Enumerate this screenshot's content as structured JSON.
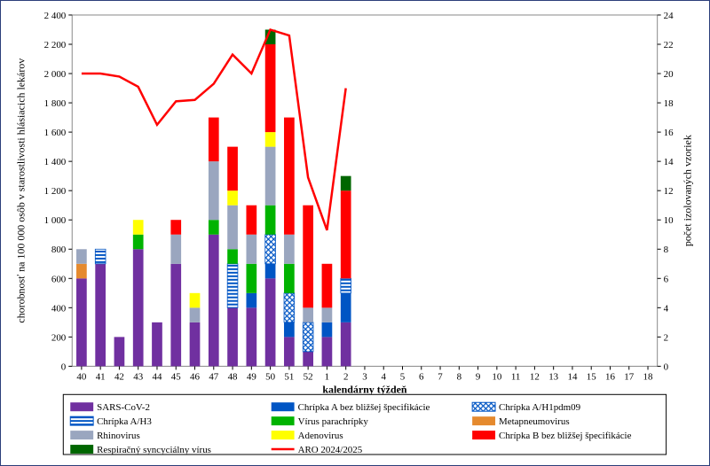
{
  "chart": {
    "type": "stacked-bar + line (dual y-axis)",
    "background_color": "#ffffff",
    "frame_border_color": "#2c3e7a",
    "plot_border_color": "#888888",
    "xlabel": "kalendárny týždeň",
    "ylabel": "chorobnosť na 100 000 osôb v starostlivosti hlásiacich lekárov",
    "y2label": "počet izolovaných vzoriek",
    "label_fontsize": 12,
    "tick_fontsize": 11,
    "x_categories": [
      "40",
      "41",
      "42",
      "43",
      "44",
      "45",
      "46",
      "47",
      "48",
      "49",
      "50",
      "51",
      "52",
      "1",
      "2",
      "3",
      "4",
      "5",
      "6",
      "7",
      "8",
      "9",
      "10",
      "11",
      "12",
      "13",
      "14",
      "15",
      "16",
      "17",
      "18"
    ],
    "ylim": [
      0,
      2400
    ],
    "ytick_step": 200,
    "y_sep1000": " ",
    "y2lim": [
      0,
      24
    ],
    "y2tick_step": 2,
    "bar_width": 0.55,
    "series": {
      "sars_cov2": {
        "label": "SARS-CoV-2",
        "color": "#7030a0",
        "pattern": "solid"
      },
      "flu_a_unspec": {
        "label": "Chrípka A bez bližšej špecifikácie",
        "color": "#0055c4",
        "pattern": "solid"
      },
      "flu_a_h1pdm09": {
        "label": "Chrípka A/H1pdm09",
        "color": "#0055c4",
        "pattern": "cross"
      },
      "flu_a_h3": {
        "label": "Chrípka A/H3",
        "color": "#0055c4",
        "pattern": "hstripe"
      },
      "parainfluenza": {
        "label": "Vírus parachrípky",
        "color": "#00b300",
        "pattern": "solid"
      },
      "metapneumo": {
        "label": "Metapneumovirus",
        "color": "#e58a2e",
        "pattern": "solid"
      },
      "rhinovirus": {
        "label": "Rhinovirus",
        "color": "#9aa6bf",
        "pattern": "solid"
      },
      "adenovirus": {
        "label": "Adenovirus",
        "color": "#ffff00",
        "pattern": "solid"
      },
      "flu_b_unspec": {
        "label": "Chrípka B bez bližšej špecifikácie",
        "color": "#ff0000",
        "pattern": "solid"
      },
      "rsv": {
        "label": "Respiračný syncyciálny vírus",
        "color": "#006600",
        "pattern": "solid"
      },
      "line_aro": {
        "label": "ARO 2024/2025",
        "color": "#ff0000"
      }
    },
    "stack_order": [
      "sars_cov2",
      "flu_a_unspec",
      "flu_a_h1pdm09",
      "flu_a_h3",
      "parainfluenza",
      "metapneumo",
      "rhinovirus",
      "adenovirus",
      "flu_b_unspec",
      "rsv"
    ],
    "bars_y2": [
      {
        "x": "40",
        "sars_cov2": 6,
        "metapneumo": 1,
        "rhinovirus": 1
      },
      {
        "x": "41",
        "sars_cov2": 7,
        "flu_a_h3": 1
      },
      {
        "x": "42",
        "sars_cov2": 2
      },
      {
        "x": "43",
        "sars_cov2": 8,
        "parainfluenza": 1,
        "adenovirus": 1
      },
      {
        "x": "44",
        "sars_cov2": 3
      },
      {
        "x": "45",
        "sars_cov2": 7,
        "rhinovirus": 2,
        "flu_b_unspec": 1
      },
      {
        "x": "46",
        "sars_cov2": 3,
        "rhinovirus": 1,
        "adenovirus": 1
      },
      {
        "x": "47",
        "sars_cov2": 9,
        "parainfluenza": 1,
        "rhinovirus": 4,
        "flu_b_unspec": 3
      },
      {
        "x": "48",
        "sars_cov2": 4,
        "flu_a_h3": 3,
        "parainfluenza": 1,
        "rhinovirus": 3,
        "adenovirus": 1,
        "flu_b_unspec": 3
      },
      {
        "x": "49",
        "sars_cov2": 4,
        "flu_a_unspec": 1,
        "parainfluenza": 2,
        "rhinovirus": 2,
        "flu_b_unspec": 2
      },
      {
        "x": "50",
        "sars_cov2": 6,
        "flu_a_unspec": 1,
        "flu_a_h1pdm09": 2,
        "parainfluenza": 2,
        "rhinovirus": 4,
        "adenovirus": 1,
        "flu_b_unspec": 6,
        "rsv": 1
      },
      {
        "x": "51",
        "sars_cov2": 2,
        "flu_a_unspec": 1,
        "flu_a_h1pdm09": 2,
        "parainfluenza": 2,
        "rhinovirus": 2,
        "flu_b_unspec": 8
      },
      {
        "x": "52",
        "sars_cov2": 1,
        "flu_a_h1pdm09": 2,
        "rhinovirus": 1,
        "flu_b_unspec": 7
      },
      {
        "x": "1",
        "sars_cov2": 2,
        "flu_a_unspec": 1,
        "rhinovirus": 1,
        "flu_b_unspec": 3
      },
      {
        "x": "2",
        "sars_cov2": 3,
        "flu_a_unspec": 2,
        "flu_a_h3": 1,
        "flu_b_unspec": 6,
        "rsv": 1
      }
    ],
    "line_y1": [
      {
        "x": "40",
        "y": 2000
      },
      {
        "x": "41",
        "y": 2000
      },
      {
        "x": "42",
        "y": 1980
      },
      {
        "x": "43",
        "y": 1910
      },
      {
        "x": "44",
        "y": 1650
      },
      {
        "x": "45",
        "y": 1810
      },
      {
        "x": "46",
        "y": 1820
      },
      {
        "x": "47",
        "y": 1930
      },
      {
        "x": "48",
        "y": 2130
      },
      {
        "x": "49",
        "y": 2000
      },
      {
        "x": "50",
        "y": 2300
      },
      {
        "x": "51",
        "y": 2260
      },
      {
        "x": "52",
        "y": 1290
      },
      {
        "x": "1",
        "y": 930
      },
      {
        "x": "2",
        "y": 1900
      }
    ],
    "legend": {
      "rows": [
        [
          "sars_cov2",
          "flu_a_unspec",
          "flu_a_h1pdm09"
        ],
        [
          "flu_a_h3",
          "parainfluenza",
          "metapneumo"
        ],
        [
          "rhinovirus",
          "adenovirus",
          "flu_b_unspec"
        ],
        [
          "rsv",
          "line_aro"
        ]
      ],
      "border_color": "#000000"
    }
  }
}
